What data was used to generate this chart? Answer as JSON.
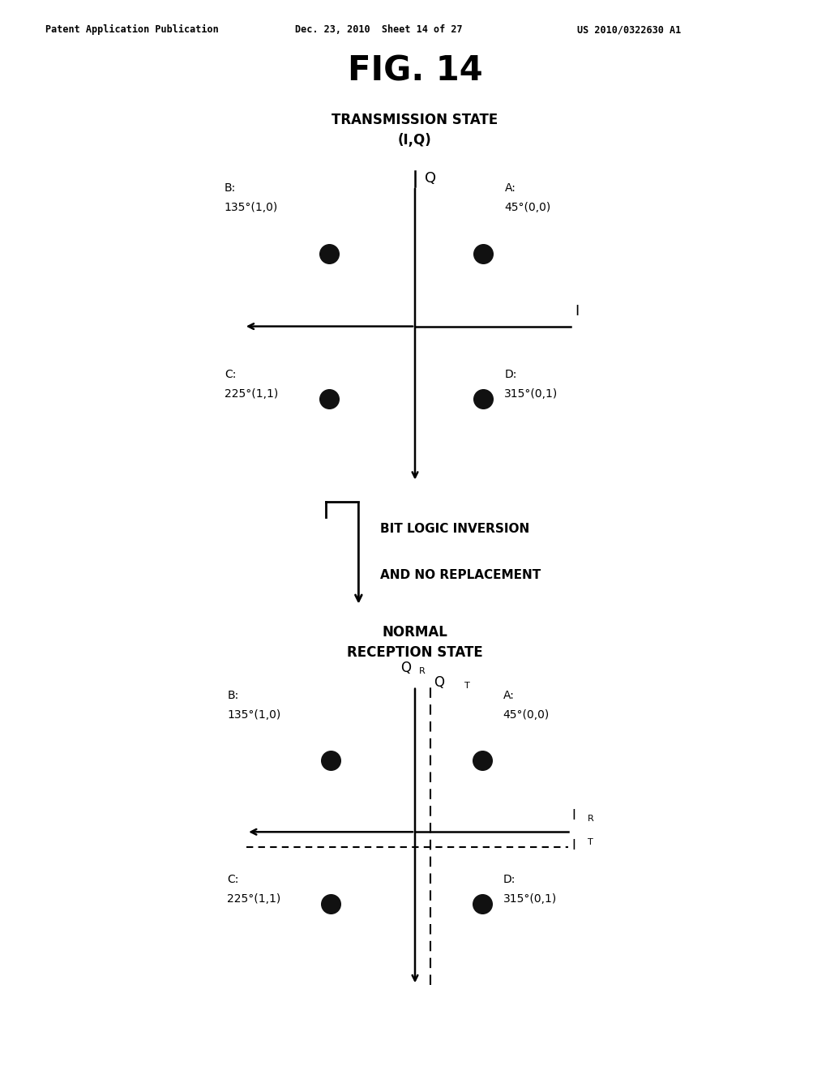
{
  "fig_title": "FIG. 14",
  "header_left": "Patent Application Publication",
  "header_center": "Dec. 23, 2010  Sheet 14 of 27",
  "header_right": "US 2010/0322630 A1",
  "top_diagram": {
    "title_line1": "TRANSMISSION STATE",
    "title_line2": "(I,Q)"
  },
  "arrow_text_line1": "BIT LOGIC INVERSION",
  "arrow_text_line2": "AND NO REPLACEMENT",
  "bottom_diagram": {
    "title_line1": "NORMAL",
    "title_line2": "RECEPTION STATE"
  },
  "background_color": "#ffffff",
  "dot_color": "#111111"
}
